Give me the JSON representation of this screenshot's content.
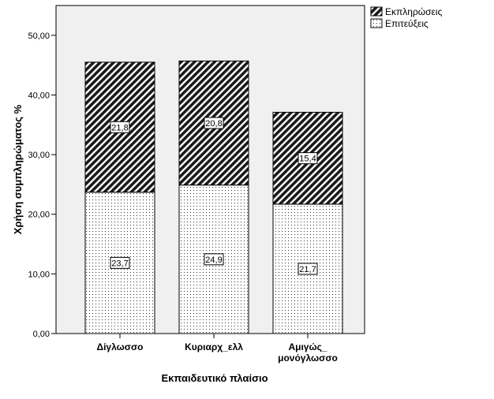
{
  "chart_data": {
    "type": "bar",
    "stacked": true,
    "categories": [
      "Δίγλωσσο",
      "Κυριαρχ_ελλ",
      "Αμιγώς_ μονόγλωσσο"
    ],
    "category_lines": [
      [
        "Δίγλωσσο"
      ],
      [
        "Κυριαρχ_ελλ"
      ],
      [
        "Αμιγώς_",
        "μονόγλωσσο"
      ]
    ],
    "series": [
      {
        "name": "Επιτεύξεις",
        "values": [
          23.7,
          24.9,
          21.7
        ],
        "labels": [
          "23,7",
          "24,9",
          "21,7"
        ],
        "pattern": "dots"
      },
      {
        "name": "Εκπληρώσεις",
        "values": [
          21.8,
          20.8,
          15.4
        ],
        "labels": [
          "21,8",
          "20,8",
          "15,4"
        ],
        "pattern": "hatch"
      }
    ],
    "legend_order": [
      "Εκπληρώσεις",
      "Επιτεύξεις"
    ],
    "xlabel": "Εκπαιδευτικό πλαίσιο",
    "ylabel": "Χρήση συμπληρώματος %",
    "ylim": [
      0,
      55
    ],
    "yticks": [
      0,
      10,
      20,
      30,
      40,
      50
    ],
    "ytick_labels": [
      "0,00",
      "10,00",
      "20,00",
      "30,00",
      "40,00",
      "50,00"
    ],
    "legend_position": "top-right",
    "grid": false,
    "colors": {
      "plot_background": "#f0f0f0",
      "bar_fill": "#ffffff",
      "hatch": "#1a1a1a",
      "dots": "#333333",
      "axis": "#000000"
    }
  }
}
